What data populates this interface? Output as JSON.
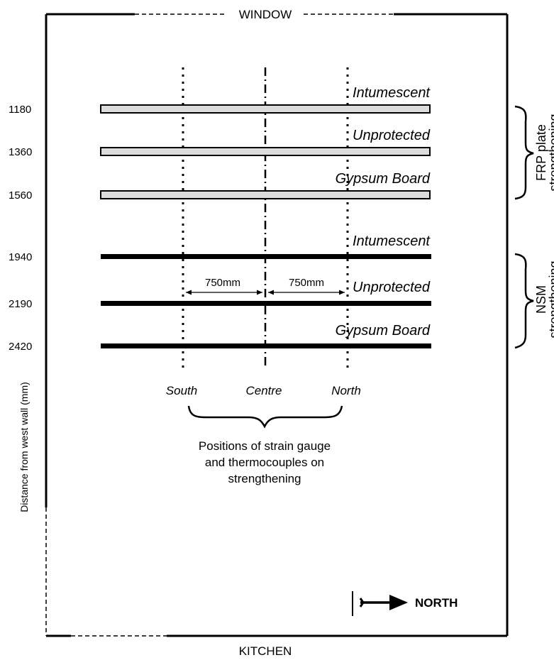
{
  "room": {
    "top_label": "WINDOW",
    "bottom_label": "KITCHEN",
    "y_axis_label": "Distance from west wall (mm)"
  },
  "strips": [
    {
      "distance": "1180",
      "label": "Intumescent",
      "type": "FRP plate"
    },
    {
      "distance": "1360",
      "label": "Unprotected",
      "type": "FRP plate"
    },
    {
      "distance": "1560",
      "label": "Gypsum Board",
      "type": "FRP plate"
    },
    {
      "distance": "1940",
      "label": "Intumescent",
      "type": "NSM"
    },
    {
      "distance": "2190",
      "label": "Unprotected",
      "type": "NSM"
    },
    {
      "distance": "2420",
      "label": "Gypsum Board",
      "type": "NSM"
    }
  ],
  "groups": {
    "frp": {
      "line1": "FRP plate",
      "line2": "strengthening"
    },
    "nsm": {
      "line1": "NSM",
      "line2": "strengthening"
    }
  },
  "positions": {
    "south": "South",
    "centre": "Centre",
    "north": "North",
    "spacing_left": "750mm",
    "spacing_right": "750mm",
    "caption_line1": "Positions of strain gauge",
    "caption_line2": "and thermocouples on",
    "caption_line3": "strengthening"
  },
  "compass": {
    "label": "NORTH"
  }
}
